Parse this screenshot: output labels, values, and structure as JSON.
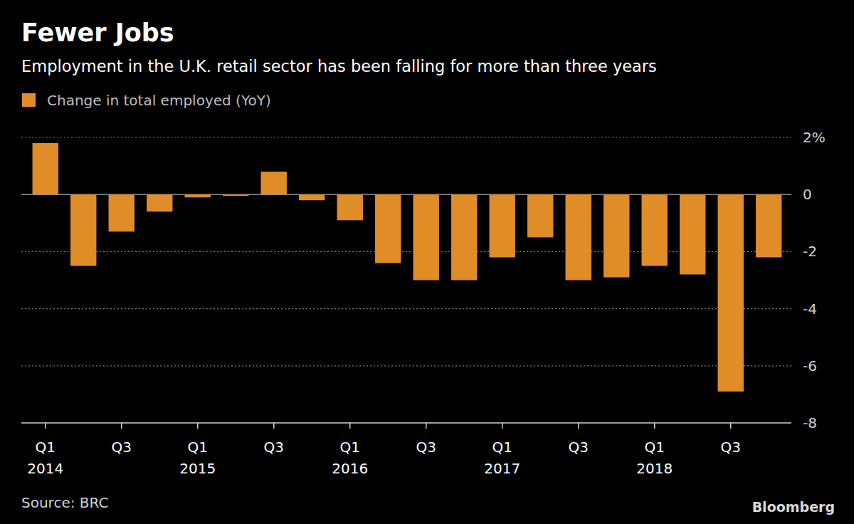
{
  "chart_data": {
    "type": "bar",
    "title": "Fewer Jobs",
    "subtitle": "Employment in the U.K. retail sector has been falling for more than three years",
    "source": "Source: BRC",
    "brand": "Bloomberg",
    "categories": [
      "Q1 2014",
      null,
      "Q3",
      null,
      "Q1 2015",
      null,
      "Q3",
      null,
      "Q1 2016",
      null,
      "Q3",
      null,
      "Q1 2017",
      null,
      "Q3",
      null,
      "Q1 2018",
      null,
      "Q3",
      null
    ],
    "series": [
      {
        "name": "Change in total employed (YoY)",
        "color": "#e08c27",
        "values": [
          1.8,
          -2.5,
          -1.3,
          -0.6,
          -0.1,
          -0.05,
          0.8,
          -0.2,
          -0.9,
          -2.4,
          -3.0,
          -3.0,
          -2.2,
          -1.5,
          -3.0,
          -2.9,
          -2.5,
          -2.8,
          -6.9,
          -2.2
        ]
      }
    ],
    "ylim": [
      -8,
      2
    ],
    "yticks": [
      {
        "value": 2,
        "label": "2%"
      },
      0,
      -2,
      -4,
      -6,
      -8
    ],
    "grid": true,
    "legend": "top-left"
  }
}
